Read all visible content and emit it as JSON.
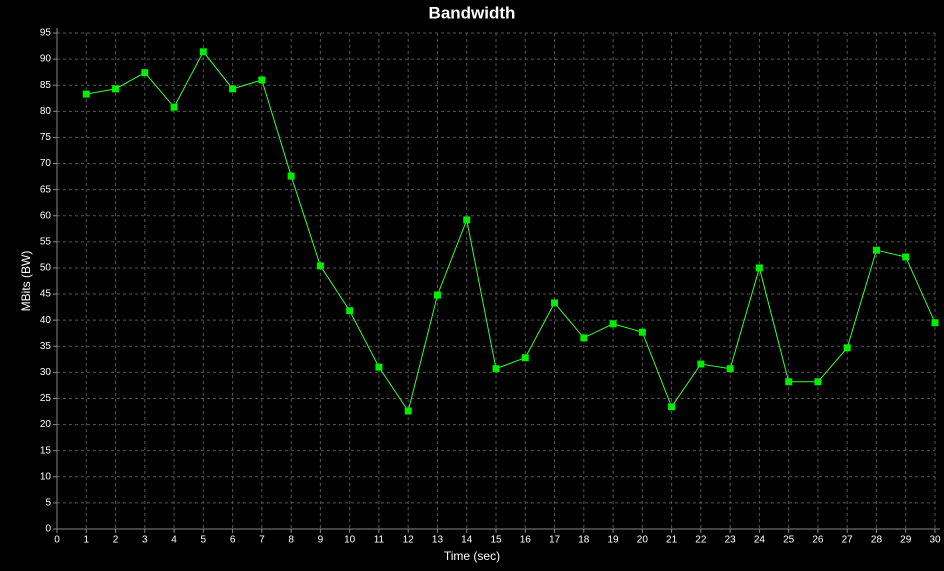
{
  "chart_data": {
    "type": "line",
    "title": "Bandwidth",
    "x_label": "Time (sec)",
    "y_label": "MBits (BW)",
    "x": [
      1,
      2,
      3,
      4,
      5,
      6,
      7,
      8,
      9,
      10,
      11,
      12,
      13,
      14,
      15,
      16,
      17,
      18,
      19,
      20,
      21,
      22,
      23,
      24,
      25,
      26,
      27,
      28,
      29,
      30
    ],
    "series": [
      {
        "name": "BW",
        "color": "#33ff33",
        "marker_color": "#00ee00",
        "values": [
          83.3,
          84.3,
          87.4,
          80.8,
          91.4,
          84.3,
          86.0,
          67.6,
          50.4,
          41.8,
          31.0,
          22.6,
          44.8,
          59.2,
          30.7,
          32.8,
          43.3,
          36.6,
          39.3,
          37.7,
          23.4,
          31.6,
          30.7,
          50.0,
          28.2,
          28.2,
          34.7,
          53.4,
          52.1,
          39.5
        ]
      }
    ],
    "xlim": [
      0,
      30
    ],
    "xticks": [
      0,
      1,
      2,
      3,
      4,
      5,
      6,
      7,
      8,
      9,
      10,
      11,
      12,
      13,
      14,
      15,
      16,
      17,
      18,
      19,
      20,
      21,
      22,
      23,
      24,
      25,
      26,
      27,
      28,
      29,
      30
    ],
    "ylim": [
      0,
      95
    ],
    "yticks": [
      0,
      5,
      10,
      15,
      20,
      25,
      30,
      35,
      40,
      45,
      50,
      55,
      60,
      65,
      70,
      75,
      80,
      85,
      90,
      95
    ],
    "grid": true
  }
}
